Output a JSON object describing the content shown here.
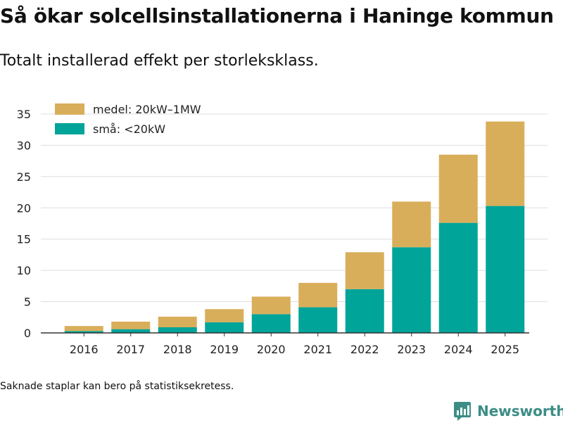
{
  "title": "Så ökar solcellsinstallationerna i Haninge kommun",
  "subtitle": "Totalt installerad effekt per storleksklass.",
  "footnote": "Saknade staplar kan bero på statistiksekretess.",
  "brand": {
    "name": "Newsworthy",
    "icon": "newsworthy-logo-icon"
  },
  "colors": {
    "medel": "#d9ae5a",
    "sma": "#00a499",
    "grid": "#dddddd",
    "axis": "#333333"
  },
  "chart_data": {
    "type": "bar",
    "stacked": true,
    "title": "Så ökar solcellsinstallationerna i Haninge kommun",
    "subtitle": "Totalt installerad effekt per storleksklass.",
    "xlabel": "",
    "ylabel": "",
    "ylim": [
      0,
      35
    ],
    "yticks": [
      0,
      5,
      10,
      15,
      20,
      25,
      30,
      35
    ],
    "grid": true,
    "legend_position": "top-left",
    "categories": [
      "2016",
      "2017",
      "2018",
      "2019",
      "2020",
      "2021",
      "2022",
      "2023",
      "2024",
      "2025"
    ],
    "series": [
      {
        "name": "små: <20kW",
        "key": "sma",
        "values": [
          0.3,
          0.6,
          0.9,
          1.7,
          3.0,
          4.1,
          7.0,
          13.7,
          17.6,
          20.3
        ]
      },
      {
        "name": "medel: 20kW–1MW",
        "key": "medel",
        "values": [
          0.8,
          1.2,
          1.7,
          2.1,
          2.8,
          3.9,
          5.9,
          7.3,
          10.9,
          13.5
        ]
      }
    ],
    "legend_order": [
      "medel",
      "sma"
    ]
  }
}
